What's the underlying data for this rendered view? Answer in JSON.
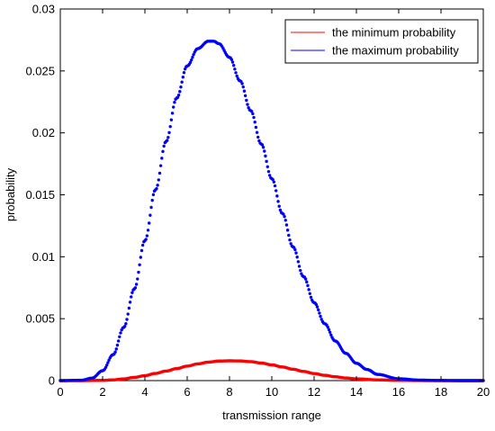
{
  "chart_data": {
    "type": "scatter",
    "title": "",
    "xlabel": "transmission range",
    "ylabel": "probability",
    "xlim": [
      0,
      20
    ],
    "ylim": [
      0,
      0.03
    ],
    "xticks": [
      0,
      2,
      4,
      6,
      8,
      10,
      12,
      14,
      16,
      18,
      20
    ],
    "yticks": [
      0,
      0.005,
      0.01,
      0.015,
      0.02,
      0.025,
      0.03
    ],
    "xtick_labels": [
      "0",
      "2",
      "4",
      "6",
      "8",
      "10",
      "12",
      "14",
      "16",
      "18",
      "20"
    ],
    "ytick_labels": [
      "0",
      "0.005",
      "0.01",
      "0.015",
      "0.02",
      "0.025",
      "0.03"
    ],
    "grid": false,
    "legend_position": "top-right",
    "series": [
      {
        "name": "the minimum probability",
        "color": "#ff0000",
        "marker": "dot",
        "x": [
          0,
          1,
          2,
          2.5,
          3,
          3.5,
          4,
          4.5,
          5,
          5.5,
          6,
          6.5,
          7,
          7.5,
          8,
          8.5,
          9,
          9.5,
          10,
          10.5,
          11,
          11.5,
          12,
          12.5,
          13,
          13.5,
          14,
          15,
          16,
          17,
          18,
          19,
          20
        ],
        "y": [
          0,
          0,
          2e-05,
          6e-05,
          0.00014,
          0.00026,
          0.0004,
          0.00058,
          0.00077,
          0.00097,
          0.00117,
          0.00135,
          0.00149,
          0.00158,
          0.0016,
          0.00159,
          0.00153,
          0.00142,
          0.00127,
          0.0011,
          0.00092,
          0.00074,
          0.00057,
          0.00043,
          0.00031,
          0.00021,
          0.00014,
          6e-05,
          2e-05,
          5e-06,
          0,
          0,
          0
        ]
      },
      {
        "name": "the maximum probability",
        "color": "#0000ff",
        "marker": "dot",
        "x": [
          0,
          1,
          1.5,
          2,
          2.5,
          3,
          3.5,
          4,
          4.5,
          5,
          5.5,
          6,
          6.5,
          7,
          7.25,
          7.5,
          8,
          8.5,
          9,
          9.5,
          10,
          10.5,
          11,
          11.5,
          12,
          12.5,
          13,
          13.5,
          14,
          14.5,
          15,
          16,
          17,
          18,
          19,
          20
        ],
        "y": [
          0,
          3e-05,
          0.0002,
          0.0008,
          0.0021,
          0.0043,
          0.0074,
          0.0113,
          0.0154,
          0.0193,
          0.0228,
          0.0254,
          0.0268,
          0.0274,
          0.0274,
          0.0272,
          0.0261,
          0.0242,
          0.0218,
          0.0191,
          0.0163,
          0.0135,
          0.0108,
          0.0084,
          0.0063,
          0.0046,
          0.0032,
          0.0022,
          0.0014,
          0.0009,
          0.0005,
          0.00015,
          4e-05,
          1e-05,
          0,
          0
        ]
      }
    ]
  }
}
